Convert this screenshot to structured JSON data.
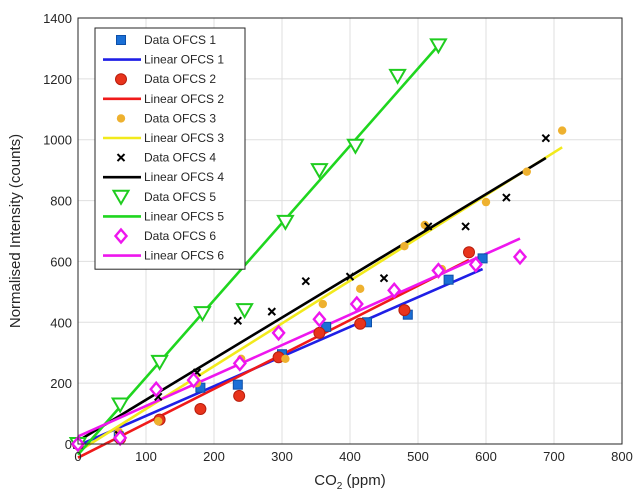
{
  "chart_data": {
    "type": "scatter",
    "xlabel_main": "CO",
    "xlabel_sub": "2",
    "xlabel_unit": " (ppm)",
    "ylabel": "Normalised Intensity (counts)",
    "xlim": [
      0,
      800
    ],
    "ylim": [
      0,
      1400
    ],
    "xticks": [
      0,
      100,
      200,
      300,
      400,
      500,
      600,
      700,
      800
    ],
    "yticks": [
      0,
      200,
      400,
      600,
      800,
      1000,
      1200,
      1400
    ],
    "grid": true,
    "legend_position": "top-left",
    "series": [
      {
        "name": "Data OFCS 1",
        "marker": "square",
        "color": "#1a6fd6",
        "points": [
          [
            0,
            0
          ],
          [
            60,
            25
          ],
          [
            180,
            185
          ],
          [
            235,
            195
          ],
          [
            300,
            295
          ],
          [
            365,
            385
          ],
          [
            425,
            400
          ],
          [
            485,
            425
          ],
          [
            545,
            540
          ],
          [
            595,
            610
          ]
        ]
      },
      {
        "name": "Data OFCS 2",
        "marker": "circle",
        "color": "#e8341c",
        "points": [
          [
            0,
            0
          ],
          [
            62,
            18
          ],
          [
            120,
            80
          ],
          [
            180,
            115
          ],
          [
            237,
            158
          ],
          [
            295,
            285
          ],
          [
            355,
            365
          ],
          [
            415,
            395
          ],
          [
            480,
            440
          ],
          [
            575,
            630
          ]
        ]
      },
      {
        "name": "Data OFCS 3",
        "marker": "dot",
        "color": "#eeb12f",
        "points": [
          [
            0,
            0
          ],
          [
            60,
            40
          ],
          [
            118,
            75
          ],
          [
            175,
            200
          ],
          [
            240,
            280
          ],
          [
            305,
            280
          ],
          [
            360,
            460
          ],
          [
            415,
            510
          ],
          [
            480,
            650
          ],
          [
            510,
            720
          ],
          [
            535,
            575
          ],
          [
            600,
            795
          ],
          [
            660,
            895
          ],
          [
            712,
            1030
          ]
        ]
      },
      {
        "name": "Data OFCS 4",
        "marker": "x",
        "color": "#000000",
        "points": [
          [
            0,
            0
          ],
          [
            60,
            30
          ],
          [
            118,
            155
          ],
          [
            175,
            235
          ],
          [
            235,
            405
          ],
          [
            285,
            435
          ],
          [
            335,
            535
          ],
          [
            400,
            550
          ],
          [
            450,
            545
          ],
          [
            515,
            715
          ],
          [
            570,
            715
          ],
          [
            630,
            810
          ],
          [
            688,
            1005
          ]
        ]
      },
      {
        "name": "Data OFCS 5",
        "marker": "triangle-down",
        "color": "#1fcc1f",
        "points": [
          [
            0,
            0
          ],
          [
            62,
            130
          ],
          [
            120,
            270
          ],
          [
            183,
            430
          ],
          [
            245,
            440
          ],
          [
            305,
            730
          ],
          [
            355,
            900
          ],
          [
            408,
            980
          ],
          [
            470,
            1210
          ],
          [
            530,
            1310
          ]
        ]
      },
      {
        "name": "Data OFCS 6",
        "marker": "diamond",
        "color": "#ee16ee",
        "points": [
          [
            0,
            0
          ],
          [
            62,
            20
          ],
          [
            115,
            180
          ],
          [
            170,
            210
          ],
          [
            238,
            265
          ],
          [
            295,
            365
          ],
          [
            355,
            410
          ],
          [
            410,
            460
          ],
          [
            465,
            505
          ],
          [
            530,
            570
          ],
          [
            585,
            590
          ],
          [
            650,
            615
          ]
        ]
      }
    ],
    "fits": [
      {
        "name": "Linear OFCS 1",
        "color": "#1f1fe6",
        "x": [
          0,
          595
        ],
        "y": [
          -5,
          575
        ]
      },
      {
        "name": "Linear OFCS 2",
        "color": "#f01a1a",
        "x": [
          0,
          575
        ],
        "y": [
          -45,
          605
        ]
      },
      {
        "name": "Linear OFCS 3",
        "color": "#f2ea1c",
        "x": [
          0,
          712
        ],
        "y": [
          -25,
          975
        ]
      },
      {
        "name": "Linear OFCS 4",
        "color": "#000000",
        "x": [
          0,
          688
        ],
        "y": [
          10,
          940
        ]
      },
      {
        "name": "Linear OFCS 5",
        "color": "#1fd61f",
        "x": [
          0,
          530
        ],
        "y": [
          -35,
          1310
        ]
      },
      {
        "name": "Linear OFCS 6",
        "color": "#ee16ee",
        "x": [
          0,
          650
        ],
        "y": [
          25,
          675
        ]
      }
    ]
  }
}
